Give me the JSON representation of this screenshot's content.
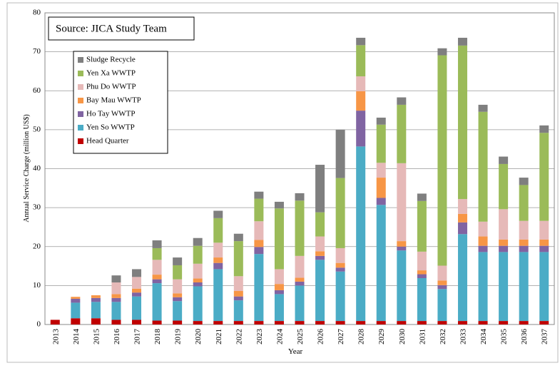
{
  "chart_data": {
    "type": "bar",
    "stacked": true,
    "annotation": "Source: JICA Study Team",
    "x_label": "Year",
    "y_label": "Annual Service Charge (million US$)",
    "categories": [
      "2013",
      "2014",
      "2015",
      "2016",
      "2017",
      "2018",
      "2019",
      "2020",
      "2021",
      "2022",
      "2023",
      "2024",
      "2025",
      "2026",
      "2027",
      "2028",
      "2029",
      "2030",
      "2031",
      "2032",
      "2033",
      "2034",
      "2035",
      "2036",
      "2037"
    ],
    "series": [
      {
        "name": "Head Quarter",
        "color": "#c00000",
        "values": [
          1.2,
          1.6,
          1.6,
          1.2,
          1.2,
          1,
          1,
          0.9,
          0.9,
          0.9,
          0.9,
          0.9,
          0.9,
          0.9,
          0.9,
          0.9,
          0.9,
          0.9,
          0.9,
          0.9,
          0.9,
          0.9,
          0.9,
          0.9,
          0.9
        ]
      },
      {
        "name": "Yen So WWTP",
        "color": "#4bacc6",
        "values": [
          0,
          4,
          4.2,
          4.6,
          6,
          9.6,
          5,
          8.9,
          13.3,
          5.3,
          17.2,
          6.9,
          9.1,
          15.7,
          12.7,
          44.8,
          29.8,
          18.1,
          11,
          8.2,
          22.3,
          17.7,
          17.7,
          17.7,
          17.7
        ]
      },
      {
        "name": "Ho Tay WWTP",
        "color": "#8064a2",
        "values": [
          0,
          1,
          1,
          1,
          1,
          1,
          1,
          1,
          1.6,
          1,
          1.8,
          1,
          1,
          1,
          1,
          9.2,
          1.8,
          1,
          1,
          1,
          3,
          1.6,
          1.6,
          1.6,
          1.6
        ]
      },
      {
        "name": "Bay Mau WWTP",
        "color": "#f79646",
        "values": [
          0,
          0.5,
          0.7,
          1,
          1,
          1.2,
          1,
          1,
          1.4,
          1.4,
          1.8,
          1.6,
          1,
          1.2,
          1.2,
          5,
          5.2,
          1.4,
          1,
          1.2,
          2.2,
          2.4,
          1.6,
          1.6,
          1.6
        ]
      },
      {
        "name": "Phu Do WWTP",
        "color": "#e6b9b8",
        "values": [
          0,
          0,
          0,
          3,
          3,
          3.8,
          3.6,
          3.8,
          3.8,
          3.8,
          4.8,
          3.8,
          5.6,
          3.8,
          3.8,
          3.8,
          3.8,
          20,
          4.8,
          3.8,
          3.8,
          3.8,
          7.8,
          4.8,
          4.8
        ]
      },
      {
        "name": "Yen Xa WWTP",
        "color": "#9bbb59",
        "values": [
          0,
          0,
          0,
          0,
          0,
          3,
          3.6,
          4.6,
          6.3,
          9,
          5.8,
          15.6,
          14.2,
          6.2,
          18,
          8,
          9.8,
          15,
          13,
          54,
          39.4,
          28.2,
          11.6,
          9.2,
          22.6
        ]
      },
      {
        "name": "Sludge Recycle",
        "color": "#7f7f7f",
        "values": [
          0,
          0,
          0,
          1.8,
          2,
          2,
          2,
          2,
          1.9,
          1.9,
          1.8,
          1.7,
          1.9,
          12.2,
          12.4,
          1.9,
          1.8,
          1.9,
          1.9,
          1.8,
          2,
          1.8,
          1.9,
          1.9,
          1.9
        ]
      }
    ],
    "ylim": [
      0,
      80
    ],
    "yticks": [
      0,
      10,
      20,
      30,
      40,
      50,
      60,
      70,
      80
    ],
    "grid": true,
    "legend": "upper left"
  }
}
